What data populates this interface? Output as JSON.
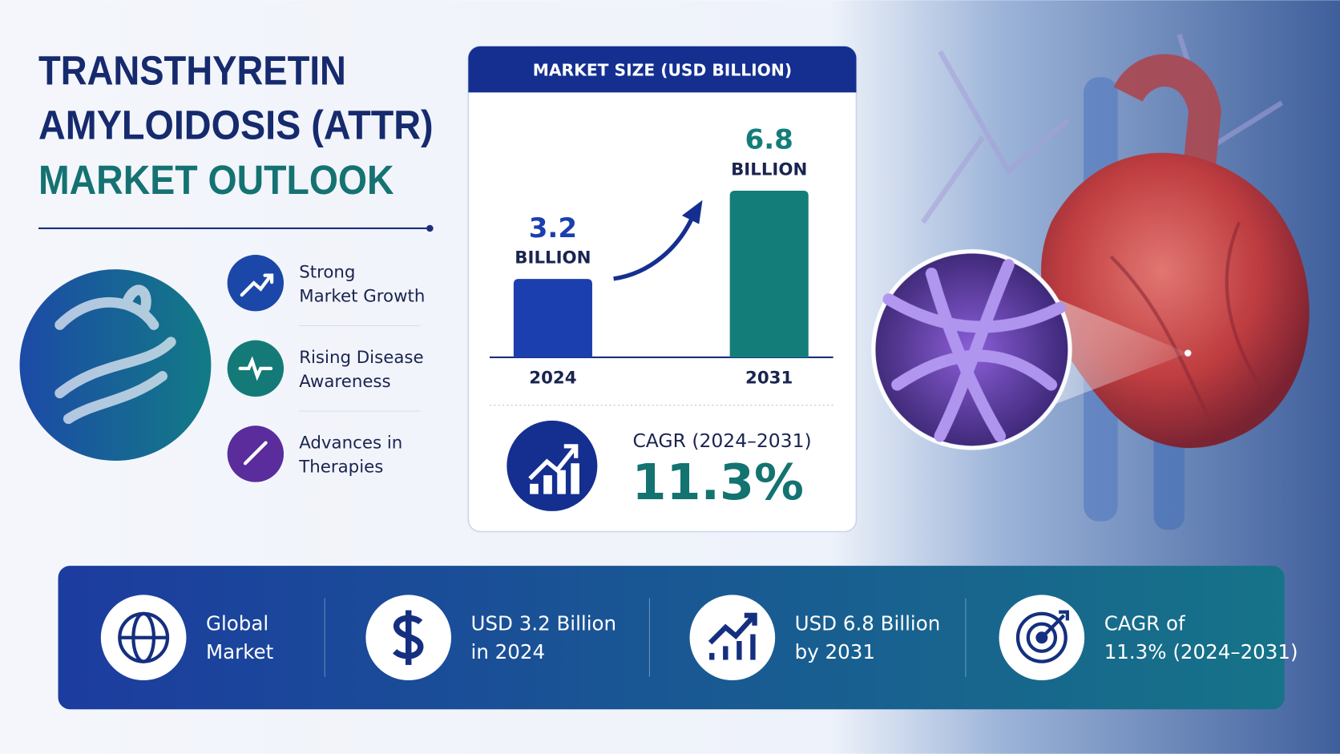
{
  "header": {
    "title_lines": [
      "TRANSTHYRETIN",
      "AMYLOIDOSIS (ATTR)"
    ],
    "subtitle": "MARKET OUTLOOK"
  },
  "features": [
    {
      "lines": [
        "Strong",
        "Market Growth"
      ]
    },
    {
      "lines": [
        "Rising Disease",
        "Awareness"
      ]
    },
    {
      "lines": [
        "Advances in",
        "Therapies"
      ]
    }
  ],
  "chart_data": {
    "type": "bar",
    "title": "MARKET SIZE (USD BILLION)",
    "categories": [
      "2024",
      "2031"
    ],
    "values": [
      3.2,
      6.8
    ],
    "unit_label": "BILLION",
    "colors": [
      "#1b3fae",
      "#137d7a"
    ]
  },
  "cagr": {
    "label": "CAGR (2024–2031)",
    "value": "11.3%"
  },
  "footer": [
    {
      "lines": [
        "Global",
        "Market"
      ]
    },
    {
      "lines": [
        "USD 3.2 Billion",
        "in 2024"
      ]
    },
    {
      "lines": [
        "USD 6.8 Billion",
        "by 2031"
      ]
    },
    {
      "lines": [
        "CAGR of",
        "11.3% (2024–2031)"
      ]
    }
  ]
}
